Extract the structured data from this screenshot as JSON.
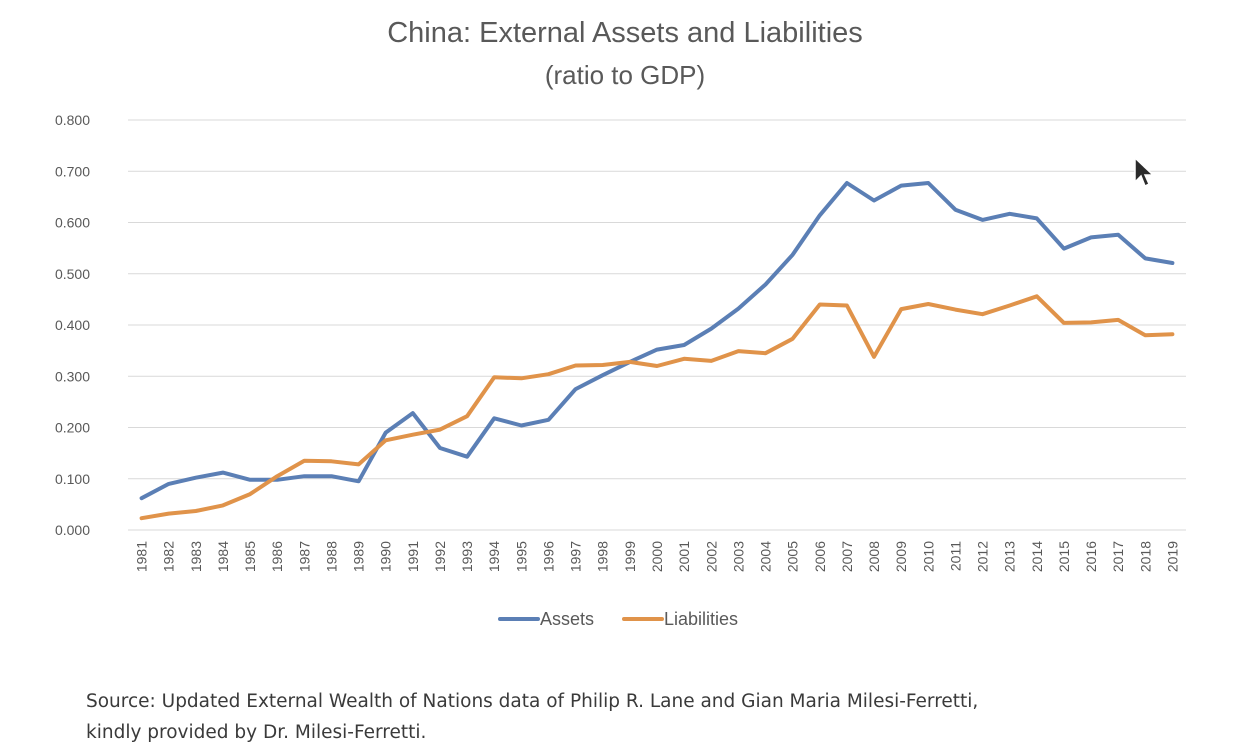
{
  "chart_data": {
    "type": "line",
    "title": "China: External Assets and Liabilities",
    "subtitle": "(ratio to GDP)",
    "xlabel": "",
    "ylabel": "",
    "ylim": [
      0,
      0.8
    ],
    "yticks": [
      "0.000",
      "0.100",
      "0.200",
      "0.300",
      "0.400",
      "0.500",
      "0.600",
      "0.700",
      "0.800"
    ],
    "grid": true,
    "legend": "bottom",
    "x": [
      "1981",
      "1982",
      "1983",
      "1984",
      "1985",
      "1986",
      "1987",
      "1988",
      "1989",
      "1990",
      "1991",
      "1992",
      "1993",
      "1994",
      "1995",
      "1996",
      "1997",
      "1998",
      "1999",
      "2000",
      "2001",
      "2002",
      "2003",
      "2004",
      "2005",
      "2006",
      "2007",
      "2008",
      "2009",
      "2010",
      "2011",
      "2012",
      "2013",
      "2014",
      "2015",
      "2016",
      "2017",
      "2018",
      "2019"
    ],
    "series": [
      {
        "name": "Assets",
        "color": "#5b7fb5",
        "values": [
          0.062,
          0.09,
          0.102,
          0.112,
          0.098,
          0.098,
          0.105,
          0.105,
          0.095,
          0.19,
          0.228,
          0.16,
          0.143,
          0.218,
          0.204,
          0.215,
          0.275,
          0.302,
          0.328,
          0.352,
          0.361,
          0.393,
          0.432,
          0.479,
          0.537,
          0.614,
          0.677,
          0.643,
          0.672,
          0.677,
          0.625,
          0.605,
          0.617,
          0.608,
          0.549,
          0.571,
          0.576,
          0.53,
          0.521
        ]
      },
      {
        "name": "Liabilities",
        "color": "#e0934a",
        "values": [
          0.023,
          0.032,
          0.037,
          0.048,
          0.07,
          0.105,
          0.135,
          0.134,
          0.128,
          0.175,
          0.186,
          0.196,
          0.222,
          0.298,
          0.296,
          0.304,
          0.321,
          0.322,
          0.328,
          0.32,
          0.334,
          0.33,
          0.349,
          0.345,
          0.373,
          0.44,
          0.438,
          0.338,
          0.431,
          0.441,
          0.43,
          0.421,
          0.438,
          0.456,
          0.404,
          0.405,
          0.41,
          0.38,
          0.382
        ]
      }
    ]
  },
  "source": {
    "line1": "Source: Updated External Wealth of Nations data of Philip R. Lane and Gian Maria Milesi-Ferretti,",
    "line2": "kindly provided by Dr. Milesi-Ferretti."
  },
  "icons": {
    "cursor": "mouse-pointer-icon"
  }
}
